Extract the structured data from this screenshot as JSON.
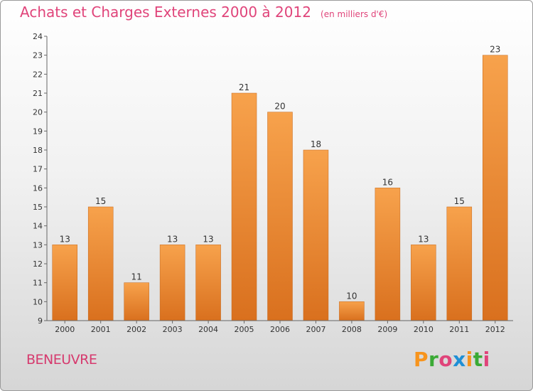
{
  "header": {
    "title": "Achats et Charges Externes 2000 à 2012",
    "unit": "(en milliers d'€)"
  },
  "footer": {
    "commune": "BENEUVRE",
    "logo_letters": [
      "P",
      "r",
      "o",
      "x",
      "i",
      "t",
      "i"
    ],
    "logo_colors": [
      "#f7941d",
      "#3aaa35",
      "#e0447a",
      "#1f8fd6",
      "#f7941d",
      "#3aaa35",
      "#e0447a"
    ]
  },
  "colors": {
    "bar_light": "#f7a24c",
    "bar_dark": "#d9701e",
    "title": "#e0447a"
  },
  "chart_data": {
    "type": "bar",
    "title": "Achats et Charges Externes 2000 à 2012",
    "subtitle": "(en milliers d'€)",
    "xlabel": "",
    "ylabel": "",
    "categories": [
      "2000",
      "2001",
      "2002",
      "2003",
      "2004",
      "2005",
      "2006",
      "2007",
      "2008",
      "2009",
      "2010",
      "2011",
      "2012"
    ],
    "values": [
      13,
      15,
      11,
      13,
      13,
      21,
      20,
      18,
      10,
      16,
      13,
      15,
      23
    ],
    "ylim": [
      9,
      24
    ],
    "yticks": [
      9,
      10,
      11,
      12,
      13,
      14,
      15,
      16,
      17,
      18,
      19,
      20,
      21,
      22,
      23,
      24
    ],
    "grid": false,
    "data_labels": true
  }
}
